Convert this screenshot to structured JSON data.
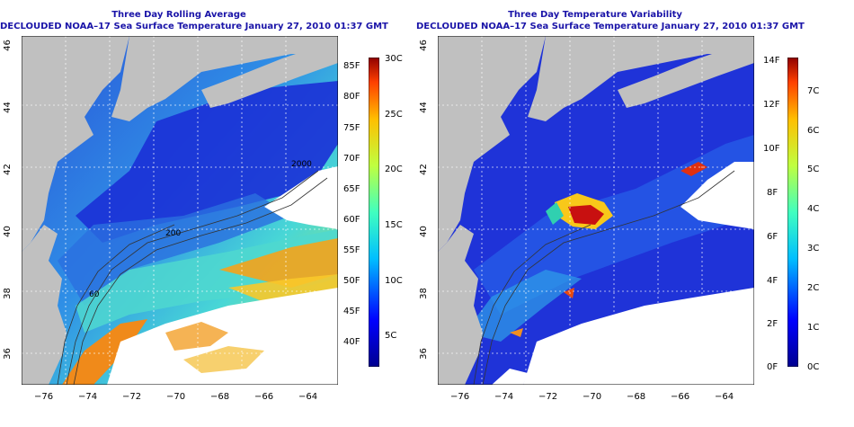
{
  "left_panel": {
    "title_line1": "Three Day Rolling Average",
    "title_line2": "DECLOUDED NOAA–17 Sea Surface Temperature January 27, 2010 01:37 GMT",
    "x_ticks": [
      "−76",
      "−74",
      "−72",
      "−70",
      "−68",
      "−66",
      "−64"
    ],
    "y_ticks": [
      "46",
      "44",
      "42",
      "40",
      "38",
      "36"
    ],
    "colorbar_f": [
      "85F",
      "80F",
      "75F",
      "70F",
      "65F",
      "60F",
      "55F",
      "50F",
      "45F",
      "40F"
    ],
    "colorbar_c": [
      "30C",
      "25C",
      "20C",
      "15C",
      "10C",
      "5C"
    ],
    "contour_labels": [
      "2000",
      "200",
      "60"
    ]
  },
  "right_panel": {
    "title_line1": "Three Day Temperature Variability",
    "title_line2": "DECLOUDED NOAA–17 Sea Surface Temperature January 27, 2010 01:37 GMT",
    "x_ticks": [
      "−76",
      "−74",
      "−72",
      "−70",
      "−68",
      "−66",
      "−64"
    ],
    "y_ticks": [
      "46",
      "44",
      "42",
      "40",
      "38",
      "36"
    ],
    "colorbar_f": [
      "14F",
      "12F",
      "10F",
      "8F",
      "6F",
      "4F",
      "2F",
      "0F"
    ],
    "colorbar_c": [
      "7C",
      "6C",
      "5C",
      "4C",
      "3C",
      "2C",
      "1C",
      "0C"
    ]
  },
  "colors": {
    "title": "#1a14a8",
    "land": "#c0c0c0",
    "cloud": "#ffffff"
  }
}
